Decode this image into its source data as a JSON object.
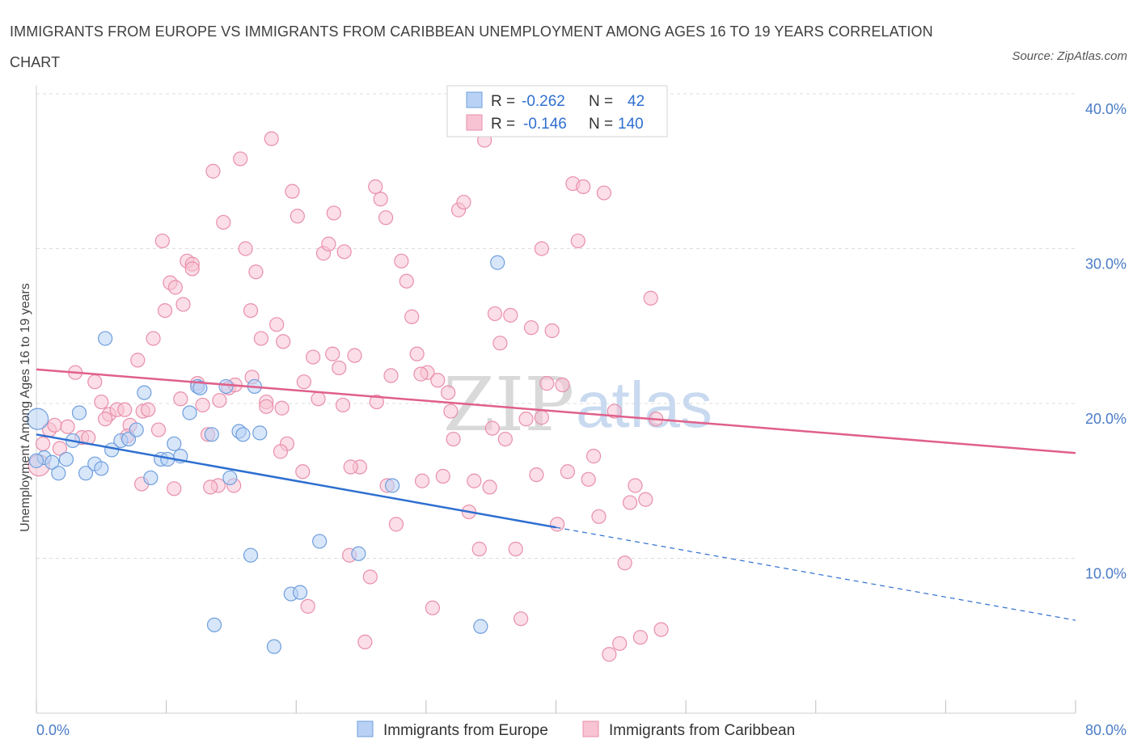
{
  "title": "IMMIGRANTS FROM EUROPE VS IMMIGRANTS FROM CARIBBEAN UNEMPLOYMENT AMONG AGES 16 TO 19 YEARS CORRELATION CHART",
  "source": "Source: ZipAtlas.com",
  "watermark": {
    "zip": "ZIP",
    "atlas": "atlas"
  },
  "legend": {
    "rows": [
      {
        "r_label": "R =",
        "r_value": "-0.262",
        "n_label": "N =",
        "n_value": "42"
      },
      {
        "r_label": "R =",
        "r_value": "-0.146",
        "n_label": "N =",
        "n_value": "140"
      }
    ]
  },
  "colors": {
    "europe_fill": "#b8d1f5",
    "europe_stroke": "#6f9fdc",
    "europe_line": "#2e6fd0",
    "caribbean_fill": "#f8c3d3",
    "caribbean_stroke": "#e98fab",
    "caribbean_line": "#e0608a",
    "grid": "#dcdcdc",
    "axis_text": "#4a7cc7"
  },
  "chart_data": {
    "type": "scatter",
    "title": "IMMIGRANTS FROM EUROPE VS IMMIGRANTS FROM CARIBBEAN UNEMPLOYMENT AMONG AGES 16 TO 19 YEARS CORRELATION CHART",
    "xlabel": "",
    "ylabel": "Unemployment Among Ages 16 to 19 years",
    "xlim": [
      0,
      80
    ],
    "ylim": [
      0,
      40
    ],
    "x_tick_labels": [
      "0.0%",
      "80.0%"
    ],
    "y_ticks": [
      10,
      20,
      30,
      40
    ],
    "y_tick_labels": [
      "10.0%",
      "20.0%",
      "30.0%",
      "40.0%"
    ],
    "grid": true,
    "legend_position": "top-center",
    "series": [
      {
        "name": "Immigrants from Europe",
        "color": "#6f9fdc",
        "trend": {
          "x": [
            0,
            40
          ],
          "y": [
            18.0,
            12.0
          ],
          "dashed_to": [
            80,
            6.0
          ]
        },
        "points": [
          [
            0.1,
            19.0
          ],
          [
            0.6,
            16.5
          ],
          [
            1.2,
            16.2
          ],
          [
            1.7,
            15.5
          ],
          [
            2.3,
            16.4
          ],
          [
            2.8,
            17.6
          ],
          [
            3.3,
            19.4
          ],
          [
            3.8,
            15.5
          ],
          [
            4.5,
            16.1
          ],
          [
            5.0,
            15.8
          ],
          [
            5.3,
            24.2
          ],
          [
            5.8,
            17.0
          ],
          [
            6.5,
            17.6
          ],
          [
            7.1,
            17.7
          ],
          [
            7.7,
            18.3
          ],
          [
            8.3,
            20.7
          ],
          [
            8.8,
            15.2
          ],
          [
            9.6,
            16.4
          ],
          [
            10.1,
            16.4
          ],
          [
            10.6,
            17.4
          ],
          [
            11.1,
            16.6
          ],
          [
            11.8,
            19.4
          ],
          [
            12.4,
            21.1
          ],
          [
            12.6,
            21.0
          ],
          [
            13.5,
            18.0
          ],
          [
            14.6,
            21.1
          ],
          [
            14.9,
            15.2
          ],
          [
            15.6,
            18.2
          ],
          [
            15.9,
            18.0
          ],
          [
            16.8,
            21.1
          ],
          [
            17.2,
            18.1
          ],
          [
            19.6,
            7.7
          ],
          [
            20.3,
            7.8
          ],
          [
            21.8,
            11.1
          ],
          [
            13.7,
            5.7
          ],
          [
            16.5,
            10.2
          ],
          [
            18.3,
            4.3
          ],
          [
            24.8,
            10.3
          ],
          [
            27.4,
            14.7
          ],
          [
            34.2,
            5.6
          ],
          [
            35.5,
            29.1
          ],
          [
            0.0,
            16.3
          ]
        ]
      },
      {
        "name": "Immigrants from Caribbean",
        "color": "#e98fab",
        "trend": {
          "x": [
            0,
            80
          ],
          "y": [
            22.2,
            16.8
          ]
        },
        "points": [
          [
            0.2,
            16.0
          ],
          [
            0.5,
            17.4
          ],
          [
            1.0,
            18.3
          ],
          [
            1.4,
            18.6
          ],
          [
            1.8,
            17.1
          ],
          [
            2.4,
            18.5
          ],
          [
            3.0,
            22.0
          ],
          [
            3.5,
            17.8
          ],
          [
            4.0,
            17.8
          ],
          [
            4.5,
            21.4
          ],
          [
            5.0,
            20.1
          ],
          [
            5.6,
            19.3
          ],
          [
            6.2,
            19.6
          ],
          [
            6.8,
            19.6
          ],
          [
            7.2,
            18.6
          ],
          [
            7.8,
            22.8
          ],
          [
            8.2,
            19.5
          ],
          [
            8.6,
            19.6
          ],
          [
            9.0,
            24.2
          ],
          [
            9.4,
            18.3
          ],
          [
            9.9,
            26.0
          ],
          [
            10.3,
            27.8
          ],
          [
            10.7,
            27.5
          ],
          [
            11.1,
            20.3
          ],
          [
            11.6,
            29.2
          ],
          [
            12.0,
            29.0
          ],
          [
            12.4,
            21.3
          ],
          [
            12.8,
            19.9
          ],
          [
            13.2,
            18.0
          ],
          [
            13.6,
            35.0
          ],
          [
            14.0,
            14.7
          ],
          [
            14.4,
            31.7
          ],
          [
            14.8,
            21.0
          ],
          [
            15.3,
            21.2
          ],
          [
            15.7,
            35.8
          ],
          [
            16.1,
            30.0
          ],
          [
            16.5,
            26.0
          ],
          [
            16.9,
            28.5
          ],
          [
            17.3,
            24.2
          ],
          [
            17.7,
            20.1
          ],
          [
            18.1,
            37.1
          ],
          [
            18.5,
            25.1
          ],
          [
            18.9,
            19.7
          ],
          [
            19.3,
            17.4
          ],
          [
            19.7,
            33.7
          ],
          [
            20.1,
            32.1
          ],
          [
            20.5,
            15.6
          ],
          [
            20.9,
            6.9
          ],
          [
            21.3,
            23.0
          ],
          [
            21.7,
            20.3
          ],
          [
            22.1,
            29.7
          ],
          [
            22.5,
            30.3
          ],
          [
            22.9,
            32.3
          ],
          [
            23.3,
            22.3
          ],
          [
            23.7,
            29.8
          ],
          [
            24.1,
            10.2
          ],
          [
            24.5,
            23.1
          ],
          [
            24.9,
            15.9
          ],
          [
            25.3,
            4.6
          ],
          [
            25.7,
            8.8
          ],
          [
            26.1,
            34.0
          ],
          [
            26.5,
            33.2
          ],
          [
            26.9,
            32.0
          ],
          [
            27.3,
            21.8
          ],
          [
            27.7,
            12.2
          ],
          [
            28.1,
            29.2
          ],
          [
            28.5,
            27.9
          ],
          [
            28.9,
            25.6
          ],
          [
            29.3,
            23.2
          ],
          [
            29.7,
            15.0
          ],
          [
            30.1,
            22.0
          ],
          [
            30.5,
            6.8
          ],
          [
            30.9,
            21.5
          ],
          [
            31.3,
            15.3
          ],
          [
            31.7,
            20.7
          ],
          [
            32.1,
            17.7
          ],
          [
            32.5,
            32.5
          ],
          [
            32.9,
            33.0
          ],
          [
            33.3,
            13.0
          ],
          [
            33.7,
            15.0
          ],
          [
            34.1,
            10.6
          ],
          [
            34.5,
            37.0
          ],
          [
            34.9,
            14.6
          ],
          [
            35.3,
            25.8
          ],
          [
            35.7,
            23.9
          ],
          [
            36.1,
            17.7
          ],
          [
            36.5,
            25.7
          ],
          [
            36.9,
            10.6
          ],
          [
            37.3,
            6.1
          ],
          [
            37.7,
            19.0
          ],
          [
            38.1,
            24.9
          ],
          [
            38.5,
            15.4
          ],
          [
            38.9,
            30.0
          ],
          [
            39.3,
            21.3
          ],
          [
            39.7,
            24.7
          ],
          [
            40.1,
            12.2
          ],
          [
            40.5,
            21.2
          ],
          [
            40.9,
            15.6
          ],
          [
            41.3,
            34.2
          ],
          [
            41.7,
            30.5
          ],
          [
            42.1,
            34.0
          ],
          [
            42.5,
            15.1
          ],
          [
            42.9,
            16.6
          ],
          [
            43.3,
            12.7
          ],
          [
            43.7,
            33.6
          ],
          [
            44.1,
            3.8
          ],
          [
            44.5,
            19.5
          ],
          [
            44.9,
            4.5
          ],
          [
            45.3,
            9.7
          ],
          [
            45.7,
            13.6
          ],
          [
            46.1,
            14.7
          ],
          [
            46.5,
            4.9
          ],
          [
            46.9,
            13.8
          ],
          [
            47.3,
            26.8
          ],
          [
            47.7,
            19.0
          ],
          [
            48.1,
            5.4
          ],
          [
            12.0,
            28.7
          ],
          [
            8.1,
            14.8
          ],
          [
            10.6,
            14.5
          ],
          [
            15.2,
            14.7
          ],
          [
            17.7,
            19.8
          ],
          [
            22.8,
            23.2
          ],
          [
            26.2,
            20.1
          ],
          [
            24.2,
            15.9
          ],
          [
            13.4,
            14.6
          ],
          [
            20.6,
            21.4
          ],
          [
            31.9,
            19.5
          ],
          [
            18.8,
            16.9
          ],
          [
            29.6,
            21.9
          ],
          [
            9.7,
            30.5
          ],
          [
            35.1,
            18.4
          ],
          [
            14.1,
            20.2
          ],
          [
            7.0,
            17.9
          ],
          [
            5.3,
            19.0
          ],
          [
            27.0,
            14.7
          ],
          [
            16.6,
            21.7
          ],
          [
            23.6,
            19.9
          ],
          [
            38.9,
            19.1
          ],
          [
            19.0,
            24.0
          ],
          [
            11.3,
            26.4
          ]
        ]
      }
    ]
  },
  "bottom_legend": [
    "Immigrants from Europe",
    "Immigrants from Caribbean"
  ]
}
